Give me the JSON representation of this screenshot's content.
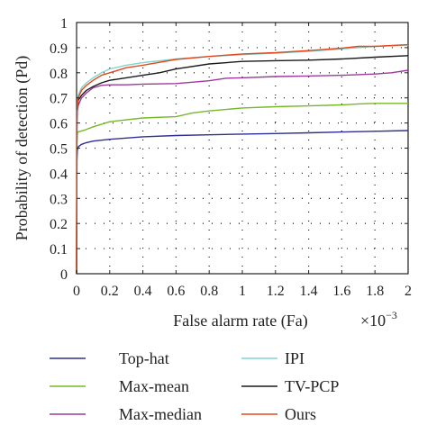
{
  "chart_data": {
    "type": "line",
    "title": "",
    "xlabel": "False alarm rate (Fa)",
    "x_multiplier": "×10",
    "x_multiplier_exp": "−3",
    "ylabel": "Probability of detection (Pd)",
    "xlim": [
      0,
      2
    ],
    "ylim": [
      0,
      1
    ],
    "xticks": [
      0,
      0.2,
      0.4,
      0.6,
      0.8,
      1,
      1.2,
      1.4,
      1.6,
      1.8,
      2
    ],
    "xtick_labels": [
      "0",
      "0.2",
      "0.4",
      "0.6",
      "0.8",
      "1",
      "1.2",
      "1.4",
      "1.6",
      "1.8",
      "2"
    ],
    "yticks": [
      0,
      0.1,
      0.2,
      0.3,
      0.4,
      0.5,
      0.6,
      0.7,
      0.8,
      0.9,
      1
    ],
    "ytick_labels": [
      "0",
      "0.1",
      "0.2",
      "0.3",
      "0.4",
      "0.5",
      "0.6",
      "0.7",
      "0.8",
      "0.9",
      "1"
    ],
    "grid": true,
    "legend_position": "below",
    "series": [
      {
        "name": "Top-hat",
        "color": "#2e3192",
        "x": [
          0,
          0.002,
          0.005,
          0.01,
          0.03,
          0.06,
          0.1,
          0.2,
          0.4,
          0.6,
          0.8,
          1.0,
          1.2,
          1.4,
          1.6,
          1.8,
          2.0
        ],
        "y": [
          0,
          0.45,
          0.49,
          0.505,
          0.515,
          0.522,
          0.528,
          0.535,
          0.545,
          0.55,
          0.553,
          0.556,
          0.558,
          0.561,
          0.564,
          0.567,
          0.57
        ]
      },
      {
        "name": "Max-mean",
        "color": "#77b82a",
        "x": [
          0,
          0.002,
          0.005,
          0.01,
          0.05,
          0.1,
          0.2,
          0.4,
          0.6,
          0.7,
          0.8,
          1.0,
          1.2,
          1.4,
          1.6,
          1.7,
          1.8,
          2.0
        ],
        "y": [
          0,
          0.52,
          0.56,
          0.565,
          0.572,
          0.585,
          0.605,
          0.62,
          0.625,
          0.64,
          0.648,
          0.66,
          0.665,
          0.668,
          0.672,
          0.676,
          0.678,
          0.678
        ]
      },
      {
        "name": "Max-median",
        "color": "#9e3a9c",
        "x": [
          0,
          0.002,
          0.005,
          0.01,
          0.03,
          0.06,
          0.1,
          0.15,
          0.2,
          0.3,
          0.4,
          0.6,
          0.8,
          0.9,
          1.0,
          1.2,
          1.4,
          1.6,
          1.8,
          1.9,
          2.0
        ],
        "y": [
          0,
          0.6,
          0.65,
          0.67,
          0.7,
          0.72,
          0.74,
          0.75,
          0.752,
          0.752,
          0.755,
          0.757,
          0.768,
          0.778,
          0.78,
          0.785,
          0.787,
          0.79,
          0.795,
          0.8,
          0.81
        ]
      },
      {
        "name": "IPI",
        "color": "#7fd3d0",
        "x": [
          0,
          0.002,
          0.005,
          0.01,
          0.03,
          0.06,
          0.1,
          0.15,
          0.2,
          0.3,
          0.4,
          0.6,
          0.8,
          1.0,
          1.2,
          1.4,
          1.6,
          1.8,
          2.0
        ],
        "y": [
          0,
          0.63,
          0.68,
          0.71,
          0.74,
          0.76,
          0.78,
          0.8,
          0.815,
          0.83,
          0.84,
          0.855,
          0.865,
          0.872,
          0.878,
          0.885,
          0.895,
          0.905,
          0.91
        ]
      },
      {
        "name": "TV-PCP",
        "color": "#1a1a1a",
        "x": [
          0,
          0.002,
          0.005,
          0.01,
          0.03,
          0.06,
          0.1,
          0.15,
          0.2,
          0.3,
          0.4,
          0.5,
          0.6,
          0.8,
          1.0,
          1.2,
          1.4,
          1.6,
          1.8,
          2.0
        ],
        "y": [
          0,
          0.63,
          0.66,
          0.69,
          0.71,
          0.73,
          0.745,
          0.76,
          0.77,
          0.78,
          0.79,
          0.8,
          0.815,
          0.835,
          0.845,
          0.848,
          0.85,
          0.855,
          0.862,
          0.868
        ]
      },
      {
        "name": "Ours",
        "color": "#e04a1e",
        "x": [
          0,
          0.002,
          0.005,
          0.01,
          0.03,
          0.06,
          0.1,
          0.15,
          0.2,
          0.3,
          0.4,
          0.6,
          0.8,
          1.0,
          1.2,
          1.4,
          1.6,
          1.7,
          1.8,
          2.0
        ],
        "y": [
          0,
          0.62,
          0.67,
          0.7,
          0.73,
          0.75,
          0.77,
          0.79,
          0.8,
          0.82,
          0.83,
          0.853,
          0.865,
          0.875,
          0.88,
          0.888,
          0.898,
          0.905,
          0.905,
          0.912
        ]
      }
    ]
  }
}
